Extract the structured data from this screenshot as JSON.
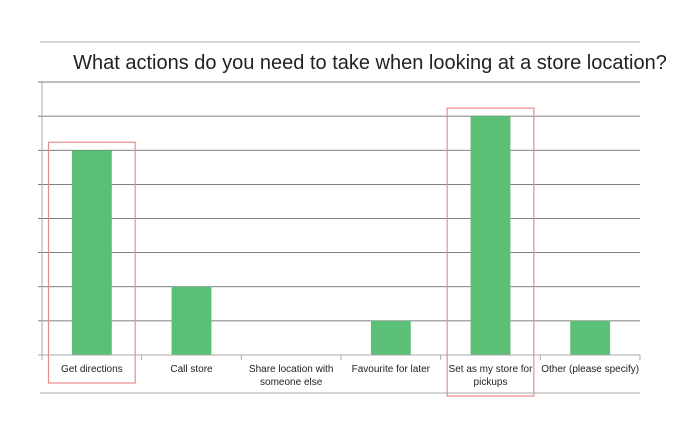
{
  "chart_data": {
    "type": "bar",
    "title": "What actions do you need to take when looking at a store location?",
    "categories": [
      [
        "Get directions"
      ],
      [
        "Call store"
      ],
      [
        "Share location with",
        "someone else"
      ],
      [
        "Favourite for later"
      ],
      [
        "Set as my store for",
        "pickups"
      ],
      [
        "Other (please specify)"
      ]
    ],
    "values": [
      6,
      2,
      0,
      1,
      7,
      1
    ],
    "ylim": [
      0,
      8
    ],
    "ygrid": true,
    "highlighted_categories": [
      0,
      4
    ],
    "colors": {
      "bar": "#5bbf75",
      "highlight": "#e88c8c",
      "grid": "#555555",
      "axis": "#aaaaaa",
      "text": "#222222"
    }
  }
}
